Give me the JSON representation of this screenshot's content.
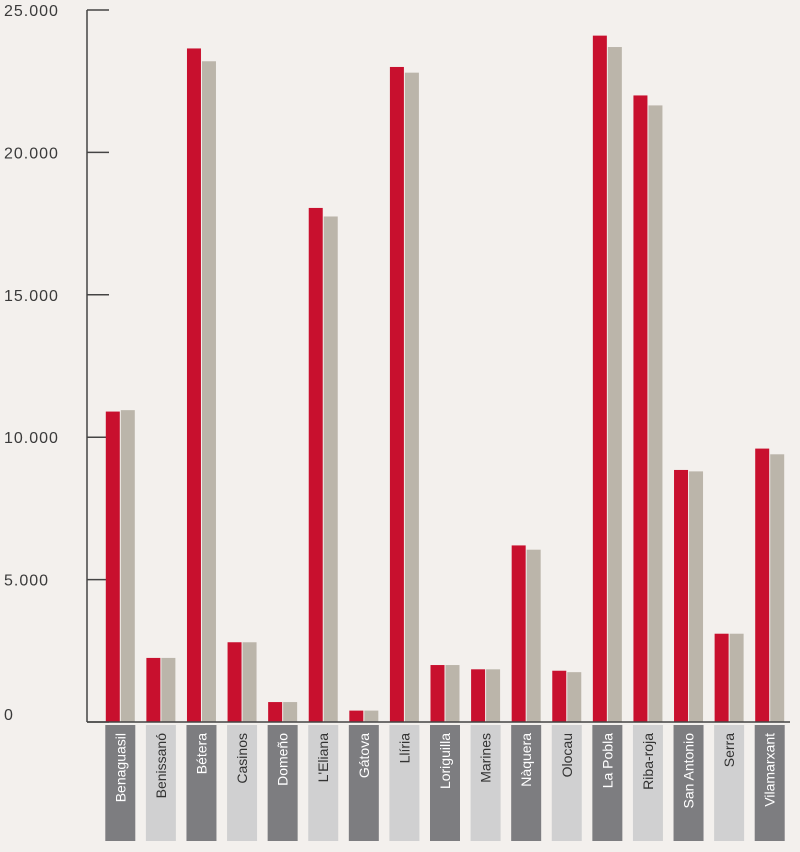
{
  "chart_data": {
    "type": "bar",
    "title": "",
    "xlabel": "",
    "ylabel": "",
    "ylim": [
      0,
      25000
    ],
    "yticks": [
      0,
      5000,
      10000,
      15000,
      20000,
      25000
    ],
    "ytick_labels": [
      "0",
      "5.000",
      "10.000",
      "15.000",
      "20.000",
      "25.000"
    ],
    "grid": false,
    "categories": [
      "Benaguasil",
      "Benissanó",
      "Bétera",
      "Casinos",
      "Domeño",
      "L'Eliana",
      "Gátova",
      "Llíria",
      "Loriguilla",
      "Marines",
      "Nàquera",
      "Olocau",
      "La Pobla",
      "Riba-roja",
      "San Antonio",
      "Serra",
      "Vilamarxant"
    ],
    "series": [
      {
        "values": [
          10900,
          2250,
          23650,
          2800,
          700,
          18050,
          400,
          23000,
          2000,
          1850,
          6200,
          1800,
          24100,
          22000,
          8850,
          3100,
          9600
        ]
      },
      {
        "values": [
          10950,
          2250,
          23200,
          2800,
          700,
          17750,
          400,
          22800,
          2000,
          1850,
          6050,
          1750,
          23700,
          21650,
          8800,
          3100,
          9400
        ]
      }
    ],
    "colors": {
      "series": [
        "#c8102e",
        "#bbb5aa"
      ],
      "label_box_dark": "#7d7d80",
      "label_box_light": "#d0d0d1",
      "axis": "#444444",
      "background": "#f3f0ed"
    }
  }
}
